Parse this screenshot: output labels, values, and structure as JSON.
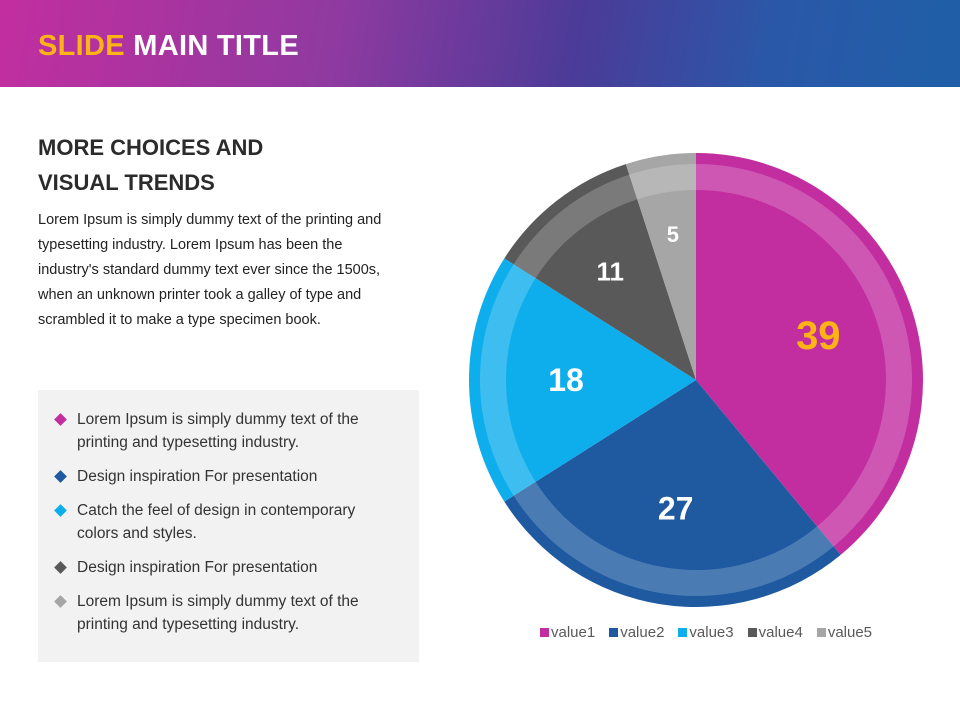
{
  "header": {
    "title_highlight": "SLIDE",
    "title_rest": "MAIN TITLE"
  },
  "left": {
    "subhead_line1": "MORE CHOICES AND",
    "subhead_line2": "VISUAL TRENDS",
    "paragraph": "Lorem Ipsum is simply dummy text of the printing and typesetting industry. Lorem Ipsum has been the industry's standard dummy text ever since the 1500s, when an unknown printer took a galley of type and scrambled it to make a type specimen book.",
    "bullets": [
      {
        "text": "Lorem Ipsum is simply dummy text of the printing and typesetting industry.",
        "color": "#c22ea0"
      },
      {
        "text": "Design inspiration For presentation",
        "color": "#1f5aa0"
      },
      {
        "text": "Catch the feel of design in contemporary colors and styles.",
        "color": "#0eaeed"
      },
      {
        "text": "Design inspiration For presentation",
        "color": "#595959"
      },
      {
        "text": "Lorem Ipsum is simply dummy text of the printing and typesetting industry.",
        "color": "#a6a6a6"
      }
    ]
  },
  "chart_data": {
    "type": "pie",
    "categories": [
      "value1",
      "value2",
      "value3",
      "value4",
      "value5"
    ],
    "values": [
      39,
      27,
      18,
      11,
      5
    ],
    "colors": [
      "#c22ea0",
      "#1f5aa0",
      "#0eaeed",
      "#595959",
      "#a6a6a6"
    ],
    "label_colors": [
      "#fbb316",
      "#ffffff",
      "#ffffff",
      "#ffffff",
      "#ffffff"
    ],
    "legend_position": "bottom",
    "start": "top, clockwise"
  }
}
